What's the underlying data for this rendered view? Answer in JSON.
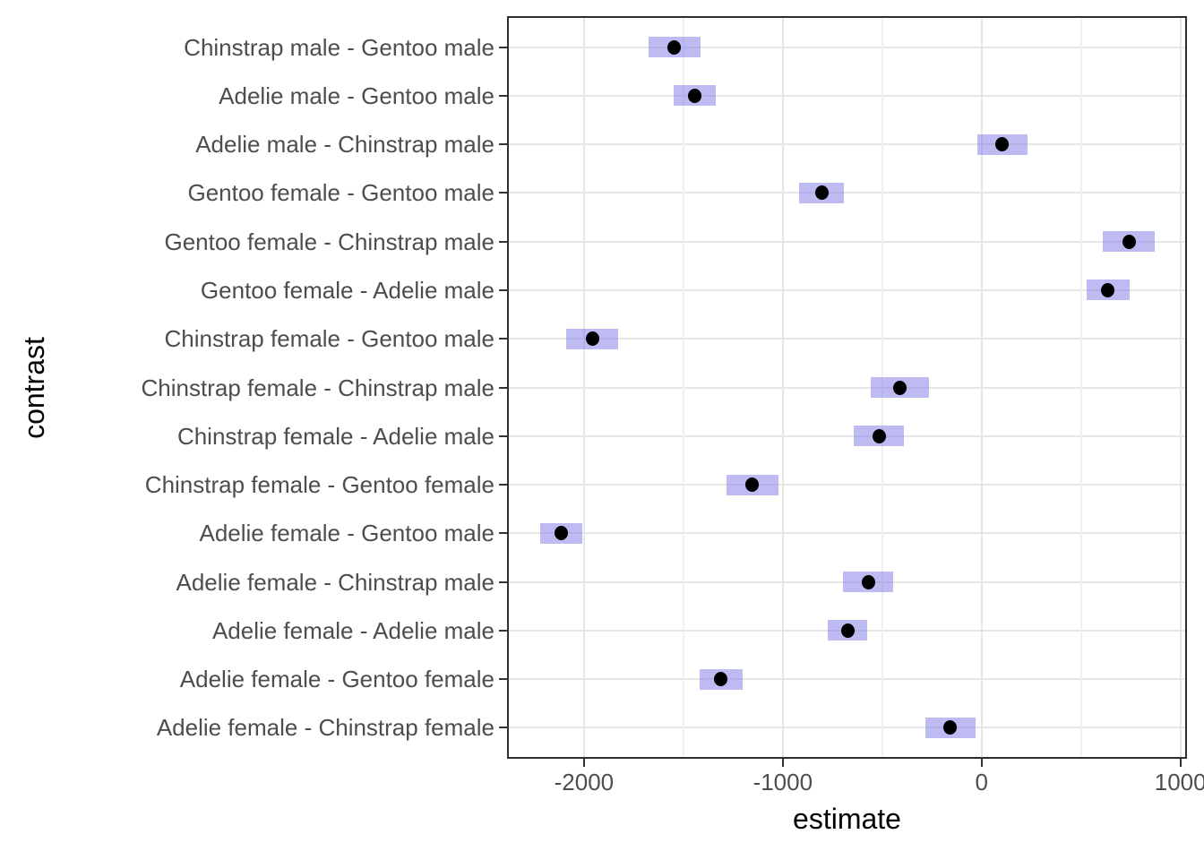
{
  "chart_data": {
    "type": "scatter",
    "subtype": "point-interval (estimate with 95% confidence band per contrast)",
    "title": "",
    "xlabel": "estimate",
    "ylabel": "contrast",
    "legend": "none",
    "grid": "vertical major+minor and horizontal major gridlines, light gray on white, dark panel border",
    "xlim": [
      -2378,
      1024
    ],
    "x_major_ticks": [
      -2000,
      -1000,
      0,
      1000
    ],
    "x_tick_labels": [
      "-2000",
      "-1000",
      "0",
      "1000"
    ],
    "x_minor_gridlines": [
      -1500,
      -500,
      500
    ],
    "rows": [
      {
        "label": "Chinstrap male - Gentoo male",
        "estimate": -1545.9,
        "lower": -1676.1,
        "upper": -1415.7
      },
      {
        "label": "Adelie male - Gentoo male",
        "estimate": -1441.4,
        "lower": -1547.0,
        "upper": -1335.8
      },
      {
        "label": "Adelie male - Chinstrap male",
        "estimate": 104.5,
        "lower": -21.8,
        "upper": 230.8
      },
      {
        "label": "Gentoo female - Gentoo male",
        "estimate": -805.1,
        "lower": -916.6,
        "upper": -693.6
      },
      {
        "label": "Gentoo female - Chinstrap male",
        "estimate": 740.8,
        "lower": 609.4,
        "upper": 872.2
      },
      {
        "label": "Gentoo female - Adelie male",
        "estimate": 636.3,
        "lower": 529.3,
        "upper": 743.3
      },
      {
        "label": "Chinstrap female - Gentoo male",
        "estimate": -1957.6,
        "lower": -2087.8,
        "upper": -1827.4
      },
      {
        "label": "Chinstrap female - Chinstrap male",
        "estimate": -411.8,
        "lower": -559.3,
        "upper": -264.3
      },
      {
        "label": "Chinstrap female - Adelie male",
        "estimate": -516.3,
        "lower": -642.6,
        "upper": -390.0
      },
      {
        "label": "Chinstrap female - Gentoo female",
        "estimate": -1152.5,
        "lower": -1283.9,
        "upper": -1021.1
      },
      {
        "label": "Adelie female - Gentoo male",
        "estimate": -2116.0,
        "lower": -2221.6,
        "upper": -2010.4
      },
      {
        "label": "Adelie female - Chinstrap male",
        "estimate": -570.1,
        "lower": -696.4,
        "upper": -443.8
      },
      {
        "label": "Adelie female - Adelie male",
        "estimate": -674.7,
        "lower": -775.4,
        "upper": -574.0
      },
      {
        "label": "Adelie female - Gentoo female",
        "estimate": -1310.9,
        "lower": -1417.9,
        "upper": -1203.9
      },
      {
        "label": "Adelie female - Chinstrap female",
        "estimate": -158.4,
        "lower": -284.7,
        "upper": -32.1
      }
    ],
    "colors": {
      "interval_fill": "rgba(124,120,229,0.5)",
      "interval_fill_over_white_hex": "#c0bef2",
      "point": "#000000",
      "grid_major": "#e6e6e6",
      "grid_minor": "#f0f0f0",
      "panel_border": "#2e2e2e",
      "axis_text": "#4d4d4d",
      "axis_title": "#000000",
      "tick_marks": "#333333",
      "background": "#ffffff"
    }
  }
}
